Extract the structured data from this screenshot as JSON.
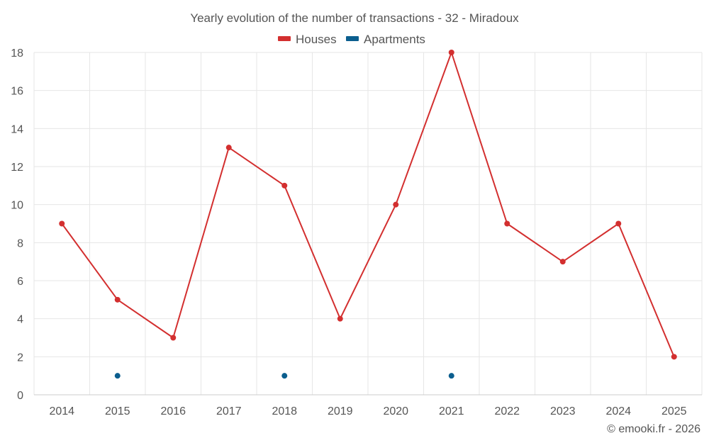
{
  "chart_data": {
    "type": "line",
    "title": "Yearly evolution of the number of transactions - 32 - Miradoux",
    "categories": [
      "2014",
      "2015",
      "2016",
      "2017",
      "2018",
      "2019",
      "2020",
      "2021",
      "2022",
      "2023",
      "2024",
      "2025"
    ],
    "series": [
      {
        "name": "Houses",
        "color": "#d32f2f",
        "line": true,
        "values": [
          9,
          5,
          3,
          13,
          11,
          4,
          10,
          18,
          9,
          7,
          9,
          2
        ]
      },
      {
        "name": "Apartments",
        "color": "#0b5e8e",
        "line": false,
        "values": [
          null,
          1,
          null,
          null,
          1,
          null,
          null,
          1,
          null,
          null,
          null,
          null
        ]
      }
    ],
    "ylim": [
      0,
      18
    ],
    "yticks": [
      0,
      2,
      4,
      6,
      8,
      10,
      12,
      14,
      16,
      18
    ],
    "xlabel": "",
    "ylabel": "",
    "grid": true,
    "legend": "top-center"
  },
  "credit": "© emooki.fr - 2026"
}
